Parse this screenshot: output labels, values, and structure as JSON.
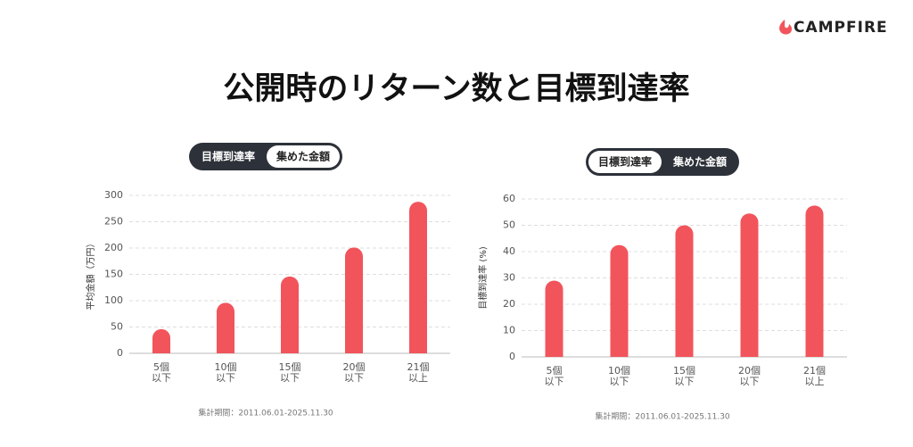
{
  "brand": "CAMPFIRE",
  "title": "公開時のリターン数と目標到達率",
  "chart_data": [
    {
      "type": "bar",
      "toggle": [
        "目標到達率",
        "集めた金額"
      ],
      "active": 1,
      "y_label": "平均金額（万円）",
      "categories": [
        [
          "5個",
          "以下"
        ],
        [
          "10個",
          "以下"
        ],
        [
          "15個",
          "以下"
        ],
        [
          "20個",
          "以下"
        ],
        [
          "21個",
          "以上"
        ]
      ],
      "values": [
        46,
        96,
        146,
        201,
        288
      ],
      "color": "#f2545b",
      "ylim": [
        0,
        300
      ],
      "yticks": [
        0,
        50,
        100,
        150,
        200,
        250,
        300
      ],
      "grid": true,
      "note": "集計期間：2011.06.01-2025.11.30"
    },
    {
      "type": "bar",
      "toggle": [
        "目標到達率",
        "集めた金額"
      ],
      "active": 0,
      "y_label": "目標到達率 (%)",
      "categories": [
        [
          "5個",
          "以下"
        ],
        [
          "10個",
          "以下"
        ],
        [
          "15個",
          "以下"
        ],
        [
          "20個",
          "以下"
        ],
        [
          "21個",
          "以上"
        ]
      ],
      "values": [
        29,
        42.5,
        50,
        54.5,
        57.5
      ],
      "color": "#f2545b",
      "ylim": [
        0,
        60
      ],
      "yticks": [
        0,
        10,
        20,
        30,
        40,
        50,
        60
      ],
      "grid": true,
      "note": "集計期間：2011.06.01-2025.11.30"
    }
  ]
}
